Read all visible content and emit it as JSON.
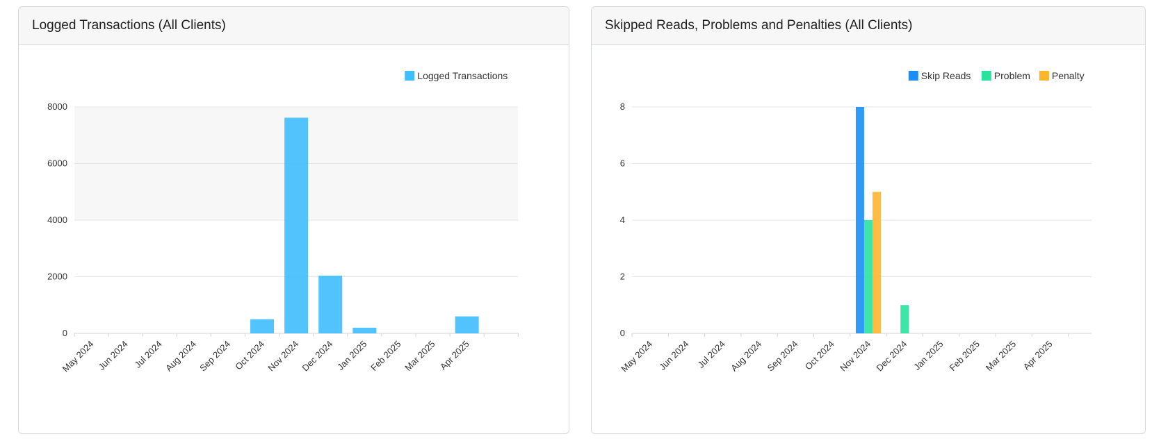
{
  "panels": [
    {
      "title": "Logged Transactions (All Clients)",
      "chart_data": {
        "type": "bar",
        "categories": [
          "May 2024",
          "Jun 2024",
          "Jul 2024",
          "Aug 2024",
          "Sep 2024",
          "Oct 2024",
          "Nov 2024",
          "Dec 2024",
          "Jan 2025",
          "Feb 2025",
          "Mar 2025",
          "Apr 2025"
        ],
        "series": [
          {
            "name": "Logged Transactions",
            "color": "#3fbdfc",
            "values": [
              0,
              0,
              0,
              0,
              0,
              500,
              7620,
              2040,
              200,
              0,
              0,
              600
            ]
          }
        ],
        "ylim": [
          0,
          8000
        ],
        "yticks": [
          0,
          2000,
          4000,
          6000,
          8000
        ],
        "grid": true,
        "banded_background": true,
        "legend_position": "top-right"
      }
    },
    {
      "title": "Skipped Reads, Problems and Penalties (All Clients)",
      "chart_data": {
        "type": "bar",
        "categories": [
          "May 2024",
          "Jun 2024",
          "Jul 2024",
          "Aug 2024",
          "Sep 2024",
          "Oct 2024",
          "Nov 2024",
          "Dec 2024",
          "Jan 2025",
          "Feb 2025",
          "Mar 2025",
          "Apr 2025"
        ],
        "series": [
          {
            "name": "Skip Reads",
            "color": "#1b8ef5",
            "values": [
              0,
              0,
              0,
              0,
              0,
              0,
              8,
              0,
              0,
              0,
              0,
              0
            ]
          },
          {
            "name": "Problem",
            "color": "#27e39c",
            "values": [
              0,
              0,
              0,
              0,
              0,
              0,
              4,
              1,
              0,
              0,
              0,
              0
            ]
          },
          {
            "name": "Penalty",
            "color": "#ffb42e",
            "values": [
              0,
              0,
              0,
              0,
              0,
              0,
              5,
              0,
              0,
              0,
              0,
              0
            ]
          }
        ],
        "ylim": [
          0,
          8
        ],
        "yticks": [
          0,
          2,
          4,
          6,
          8
        ],
        "grid": true,
        "banded_background": false,
        "legend_position": "top-right"
      }
    }
  ]
}
